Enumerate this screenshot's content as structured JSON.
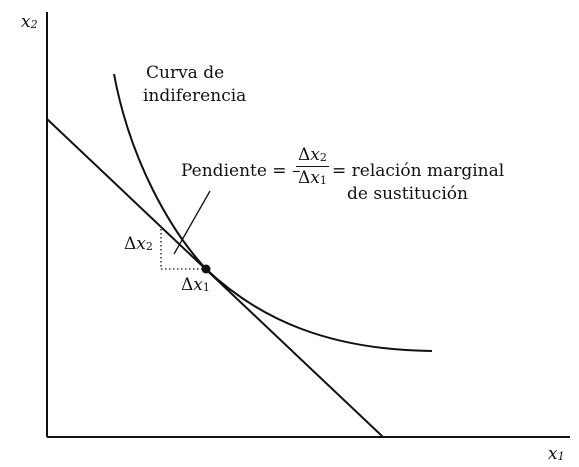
{
  "axes": {
    "y_label_var": "x",
    "y_label_sub": "2",
    "x_label_var": "x",
    "x_label_sub": "1"
  },
  "curve_label": {
    "line1": "Curva de",
    "line2": "indiferencia"
  },
  "slope_label": {
    "prefix": "Pendiente = –",
    "numerator_delta": "Δ",
    "numerator_var": "x",
    "numerator_sub": "2",
    "denominator_delta": "Δ",
    "denominator_var": "x",
    "denominator_sub": "1",
    "suffix_line1": "= relación marginal",
    "suffix_line2": "de sustitución"
  },
  "delta_labels": {
    "dx2_delta": "Δ",
    "dx2_var": "x",
    "dx2_sub": "2",
    "dx1_delta": "Δ",
    "dx1_var": "x",
    "dx1_sub": "1"
  },
  "colors": {
    "ink": "#111111",
    "background": "#ffffff"
  }
}
